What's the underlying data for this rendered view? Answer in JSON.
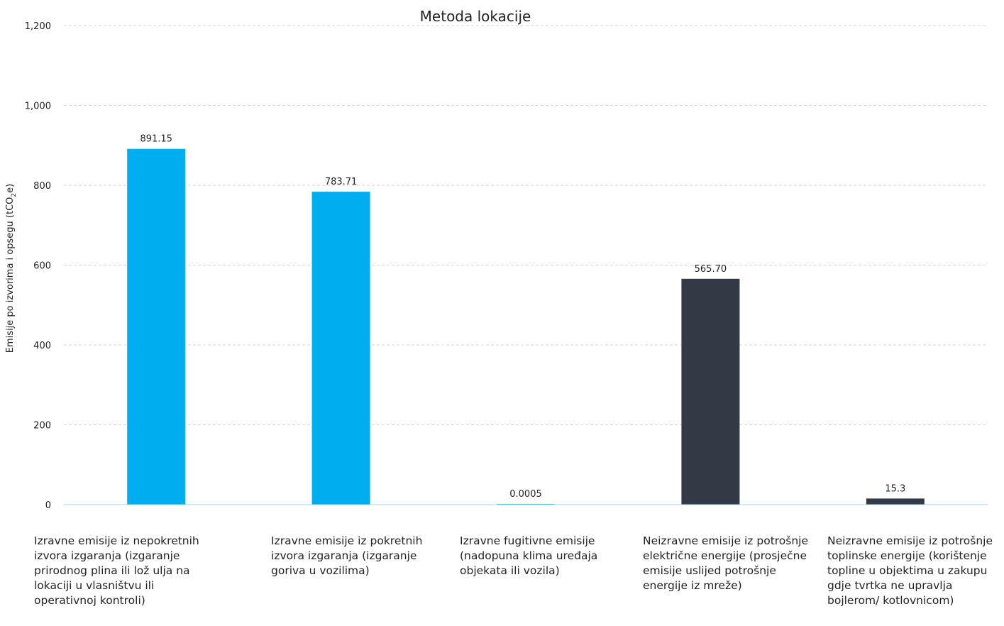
{
  "chart_data": {
    "type": "bar",
    "title": "Metoda lokacije",
    "ylabel_prefix": "Emisije po izvorima i opsegu (tCO",
    "ylabel_sub": "2",
    "ylabel_suffix": "e)",
    "ylim": [
      0,
      1200
    ],
    "yticks": [
      0,
      200,
      400,
      600,
      800,
      1000,
      1200
    ],
    "ytick_labels": [
      "0",
      "200",
      "400",
      "600",
      "800",
      "1,000",
      "1,200"
    ],
    "grid": true,
    "categories": [
      "Izravne emisije iz nepokretnih izvora izgaranja (izgaranje prirodnog plina ili lož ulja na lokaciji u vlasništvu ili operativnoj kontroli)",
      "Izravne emisije iz pokretnih izvora izgaranja (izgaranje goriva u vozilima)",
      "Izravne fugitivne emisije (nadopuna klima uređaja objekata ili vozila)",
      "Neizravne emisije iz potrošnje električne energije (prosječne emisije uslijed potrošnje energije iz mreže)",
      "Neizravne emisije iz potrošnje toplinske energije (korištenje topline u objektima u zakupu gdje tvrtka ne upravlja bojlerom/ kotlovnicom)"
    ],
    "values": [
      891.15,
      783.71,
      0.0005,
      565.7,
      15.3
    ],
    "value_labels": [
      "891.15",
      "783.71",
      "0.0005",
      "565.70",
      "15.3"
    ],
    "colors": [
      "#00aeef",
      "#00aeef",
      "#00aeef",
      "#333a45",
      "#333a45"
    ]
  }
}
